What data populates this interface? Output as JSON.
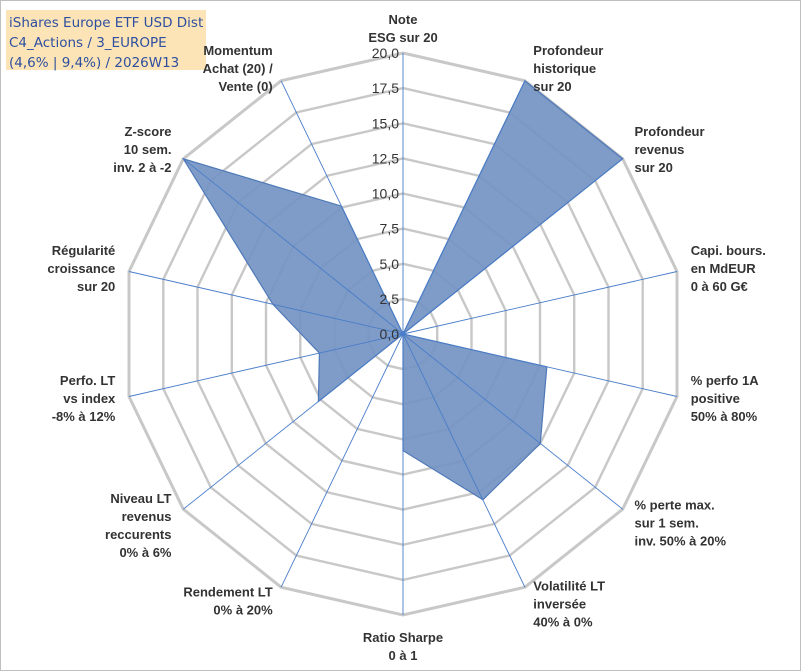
{
  "title": {
    "line1": "iShares Europe ETF USD Dist",
    "line2": "C4_Actions / 3_EUROPE",
    "line3": "(4,6% | 9,4%) / 2026W13"
  },
  "colors": {
    "fill": "#7394c2",
    "stroke": "#4e78b8",
    "grid": "#c8c8c8",
    "spoke": "#4a7dc9",
    "title_bg": "#fce4b6",
    "title_text": "#2e4fa0"
  },
  "chart_data": {
    "type": "radar",
    "range": [
      0,
      20
    ],
    "tick_labels": [
      "0,0",
      "2,5",
      "5,0",
      "7,5",
      "10,0",
      "12,5",
      "15,0",
      "17,5",
      "20,0"
    ],
    "axes": [
      {
        "name": "note-esg",
        "label": [
          "Note",
          "ESG sur 20"
        ],
        "value": 0
      },
      {
        "name": "profondeur-historique",
        "label": [
          "Profondeur",
          "historique",
          "sur 20"
        ],
        "value": 20
      },
      {
        "name": "profondeur-revenus",
        "label": [
          "Profondeur",
          "revenus",
          "sur 20"
        ],
        "value": 20
      },
      {
        "name": "capi-bours",
        "label": [
          "Capi. bours.",
          "en MdEUR",
          "0 à 60 G€"
        ],
        "value": 0
      },
      {
        "name": "perfo-1a-positive",
        "label": [
          "% perfo 1A",
          "positive",
          "50% à 80%"
        ],
        "value": 10.5
      },
      {
        "name": "perte-max",
        "label": [
          "% perte max.",
          "sur 1 sem.",
          "inv. 50% à 20%"
        ],
        "value": 12.5
      },
      {
        "name": "volatilite-lt",
        "label": [
          "Volatilité LT",
          "inversée",
          "40% à 0%"
        ],
        "value": 13.1
      },
      {
        "name": "ratio-sharpe",
        "label": [
          "Ratio Sharpe",
          "0 à 1"
        ],
        "value": 8.3
      },
      {
        "name": "rendement-lt",
        "label": [
          "Rendement LT",
          "0% à 20%"
        ],
        "value": 0
      },
      {
        "name": "niveau-lt-revenus",
        "label": [
          "Niveau LT",
          "revenus",
          "reccurents",
          "0% à 6%"
        ],
        "value": 7.7
      },
      {
        "name": "perfo-lt-vs-index",
        "label": [
          "Perfo. LT",
          "vs index",
          "-8% à 12%"
        ],
        "value": 6.1
      },
      {
        "name": "regularite-croissance",
        "label": [
          "Régularité",
          "croissance",
          "sur 20"
        ],
        "value": 9.5
      },
      {
        "name": "z-score",
        "label": [
          "Z-score",
          "10 sem.",
          "inv. 2 à -2"
        ],
        "value": 20
      },
      {
        "name": "momentum",
        "label": [
          "Momentum",
          "Achat (20) /",
          "Vente (0)"
        ],
        "value": 10.1
      }
    ]
  }
}
